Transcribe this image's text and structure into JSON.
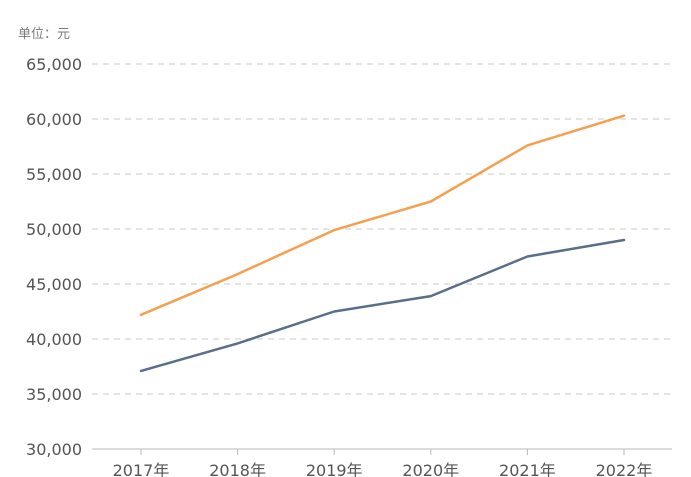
{
  "chart_data": {
    "type": "line",
    "unit_label": "单位：元",
    "categories": [
      "2017年",
      "2018年",
      "2019年",
      "2020年",
      "2021年",
      "2022年"
    ],
    "ylim": [
      30000,
      65000
    ],
    "yticks": [
      30000,
      35000,
      40000,
      45000,
      50000,
      55000,
      60000,
      65000
    ],
    "ytick_labels": [
      "30,000",
      "35,000",
      "40,000",
      "45,000",
      "50,000",
      "55,000",
      "60,000",
      "65,000"
    ],
    "grid": true,
    "series": [
      {
        "color": "#f5a04e",
        "values": [
          42200,
          45900,
          49900,
          52500,
          57600,
          60300
        ]
      },
      {
        "color": "#5a6e8c",
        "values": [
          37100,
          39600,
          42500,
          43900,
          47500,
          49000
        ]
      }
    ]
  }
}
